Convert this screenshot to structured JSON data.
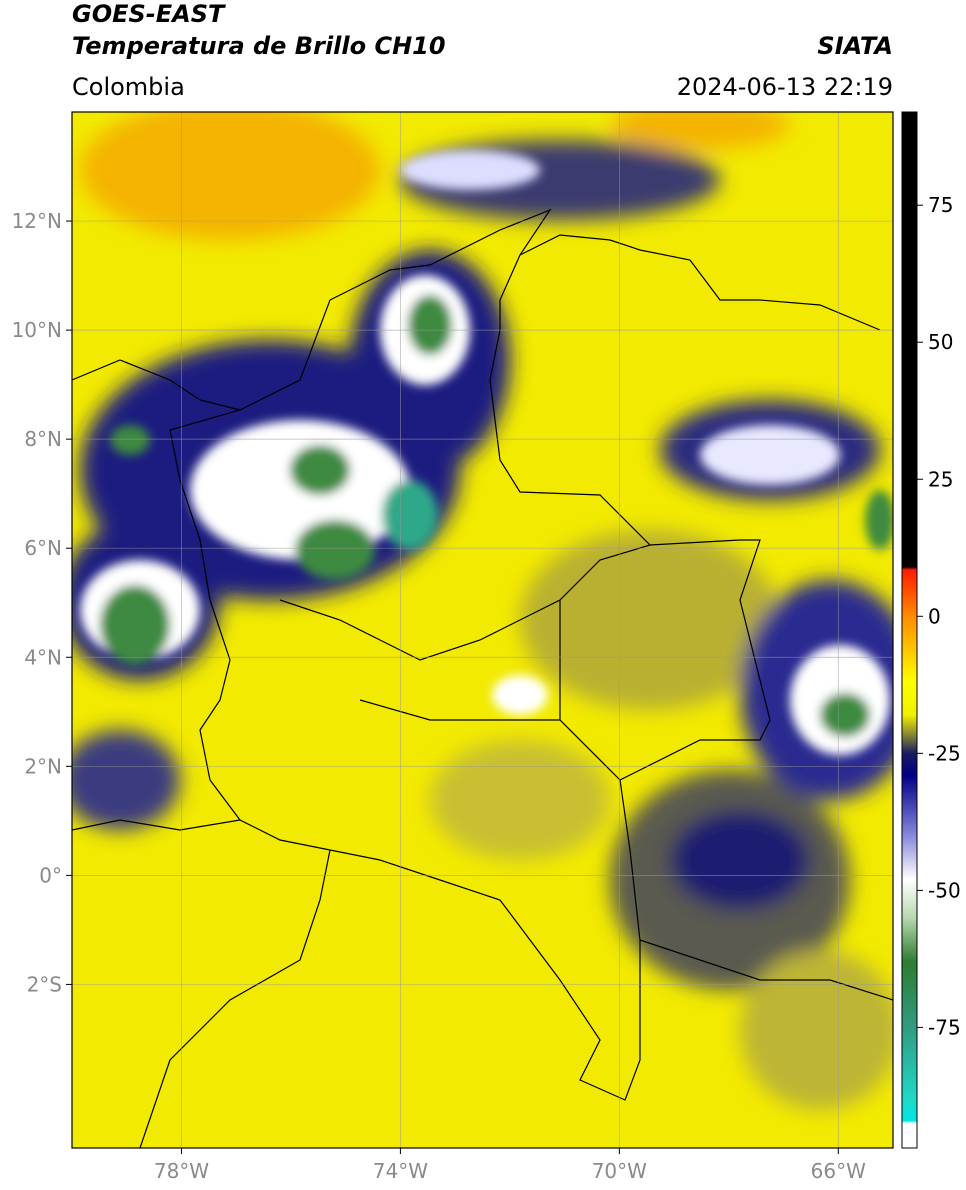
{
  "header": {
    "title": "GOES-EAST",
    "subtitle": "Temperatura de Brillo CH10",
    "source": "SIATA",
    "region": "Colombia",
    "datetime": "2024-06-13 22:19"
  },
  "map": {
    "xlim": [
      -80,
      -65
    ],
    "ylim": [
      -5,
      14
    ],
    "grid": true,
    "xticks": [
      {
        "value": -78,
        "label": "78°W"
      },
      {
        "value": -74,
        "label": "74°W"
      },
      {
        "value": -70,
        "label": "70°W"
      },
      {
        "value": -66,
        "label": "66°W"
      }
    ],
    "yticks": [
      {
        "value": 12,
        "label": "12°N"
      },
      {
        "value": 10,
        "label": "10°N"
      },
      {
        "value": 8,
        "label": "8°N"
      },
      {
        "value": 6,
        "label": "6°N"
      },
      {
        "value": 4,
        "label": "4°N"
      },
      {
        "value": 2,
        "label": "2°N"
      },
      {
        "value": 0,
        "label": "0°"
      },
      {
        "value": -2,
        "label": "2°S"
      }
    ]
  },
  "colorbar": {
    "lim": [
      -97,
      92
    ],
    "ticks": [
      75,
      50,
      25,
      0,
      -25,
      -50,
      -75
    ],
    "colormap": [
      {
        "value": 92,
        "color": "#000000"
      },
      {
        "value": 9,
        "color": "#000000"
      },
      {
        "value": 8.5,
        "color": "#ff1a00"
      },
      {
        "value": 0,
        "color": "#ff8c00"
      },
      {
        "value": -12,
        "color": "#ffff00"
      },
      {
        "value": -18,
        "color": "#f0f000"
      },
      {
        "value": -22,
        "color": "#7a7a3a"
      },
      {
        "value": -25,
        "color": "#1a1a60"
      },
      {
        "value": -29,
        "color": "#000088"
      },
      {
        "value": -40,
        "color": "#8888dd"
      },
      {
        "value": -48,
        "color": "#ffffff"
      },
      {
        "value": -55,
        "color": "#b8d8b0"
      },
      {
        "value": -63,
        "color": "#2e7d32"
      },
      {
        "value": -75,
        "color": "#2f9c80"
      },
      {
        "value": -88,
        "color": "#20d8c8"
      },
      {
        "value": -92,
        "color": "#00e5e5"
      },
      {
        "value": -92.5,
        "color": "#ffffff"
      },
      {
        "value": -97,
        "color": "#ffffff"
      }
    ]
  }
}
